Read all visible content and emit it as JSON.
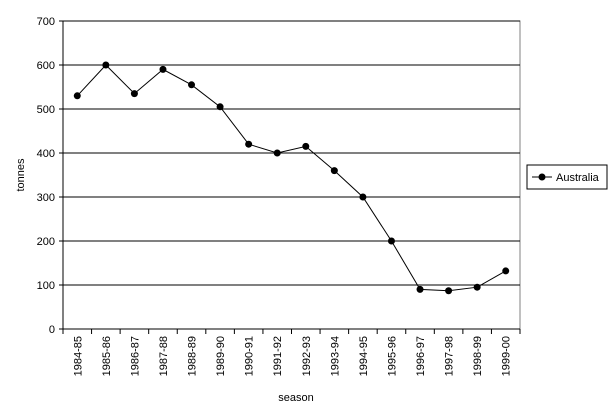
{
  "chart_data": {
    "type": "line",
    "x_label": "season",
    "y_label": "tonnes",
    "categories": [
      "1984-85",
      "1985-86",
      "1986-87",
      "1987-88",
      "1988-89",
      "1989-90",
      "1990-91",
      "1991-92",
      "1992-93",
      "1993-94",
      "1994-95",
      "1995-96",
      "1996-97",
      "1997-98",
      "1998-99",
      "1999-00"
    ],
    "series": [
      {
        "name": "Australia",
        "color": "#000000",
        "values": [
          530,
          600,
          535,
          590,
          555,
          505,
          420,
          400,
          415,
          360,
          300,
          200,
          90,
          87,
          95,
          132
        ]
      }
    ],
    "ylim": [
      0,
      700
    ],
    "yticks": [
      0,
      100,
      200,
      300,
      400,
      500,
      600,
      700
    ],
    "grid": true,
    "legend": "right"
  }
}
